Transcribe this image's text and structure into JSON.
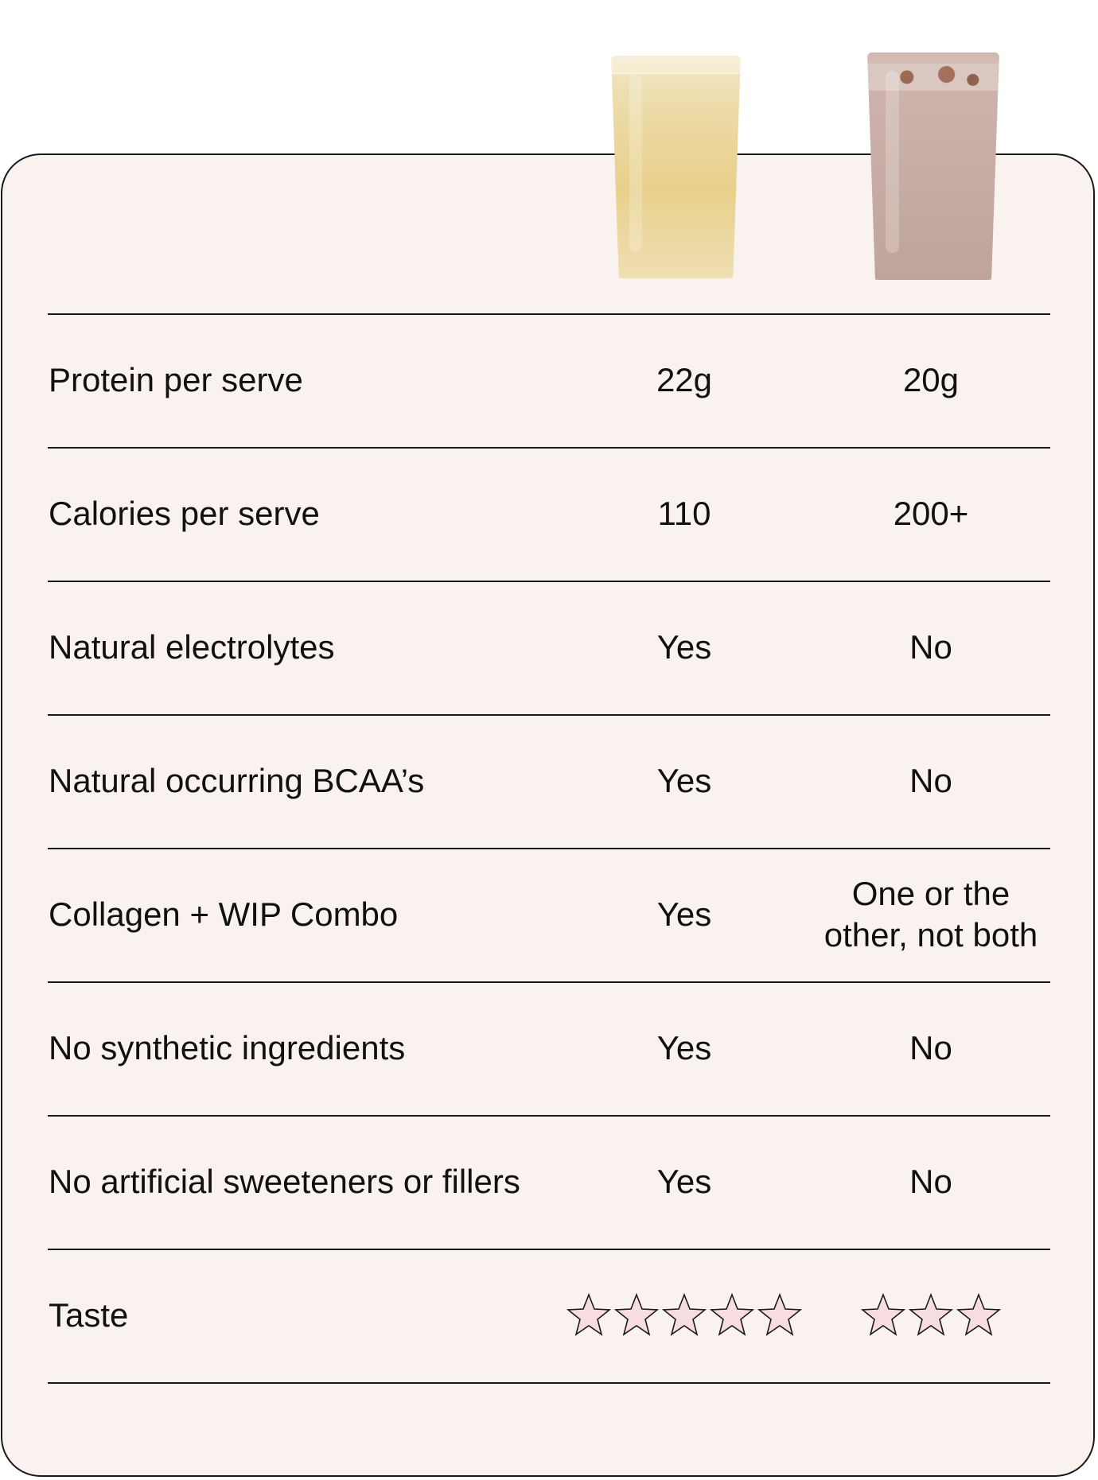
{
  "products": [
    {
      "name": "yellow-drink",
      "image_desc": "glass of pale yellow drink"
    },
    {
      "name": "chocolate-shake",
      "image_desc": "glass of chocolate protein shake"
    }
  ],
  "rows": [
    {
      "label": "Protein per serve",
      "v1": "22g",
      "v2": "20g"
    },
    {
      "label": "Calories per serve",
      "v1": "110",
      "v2": "200+"
    },
    {
      "label": "Natural electrolytes",
      "v1": "Yes",
      "v2": "No"
    },
    {
      "label": "Natural occurring BCAA’s",
      "v1": "Yes",
      "v2": "No"
    },
    {
      "label": "Collagen + WIP Combo",
      "v1": "Yes",
      "v2_line1": "One or the",
      "v2_line2": "other, not both"
    },
    {
      "label": "No synthetic ingredients",
      "v1": "Yes",
      "v2": "No"
    },
    {
      "label": "No artificial sweeteners or fillers",
      "v1": "Yes",
      "v2": "No"
    },
    {
      "label": "Taste",
      "v1_stars": 5,
      "v2_stars": 3
    }
  ],
  "colors": {
    "card_bg": "#f9f2ee",
    "border": "#1a1a1a",
    "star_fill": "#f7dde0"
  },
  "icons": {
    "rating": "star-icon"
  }
}
